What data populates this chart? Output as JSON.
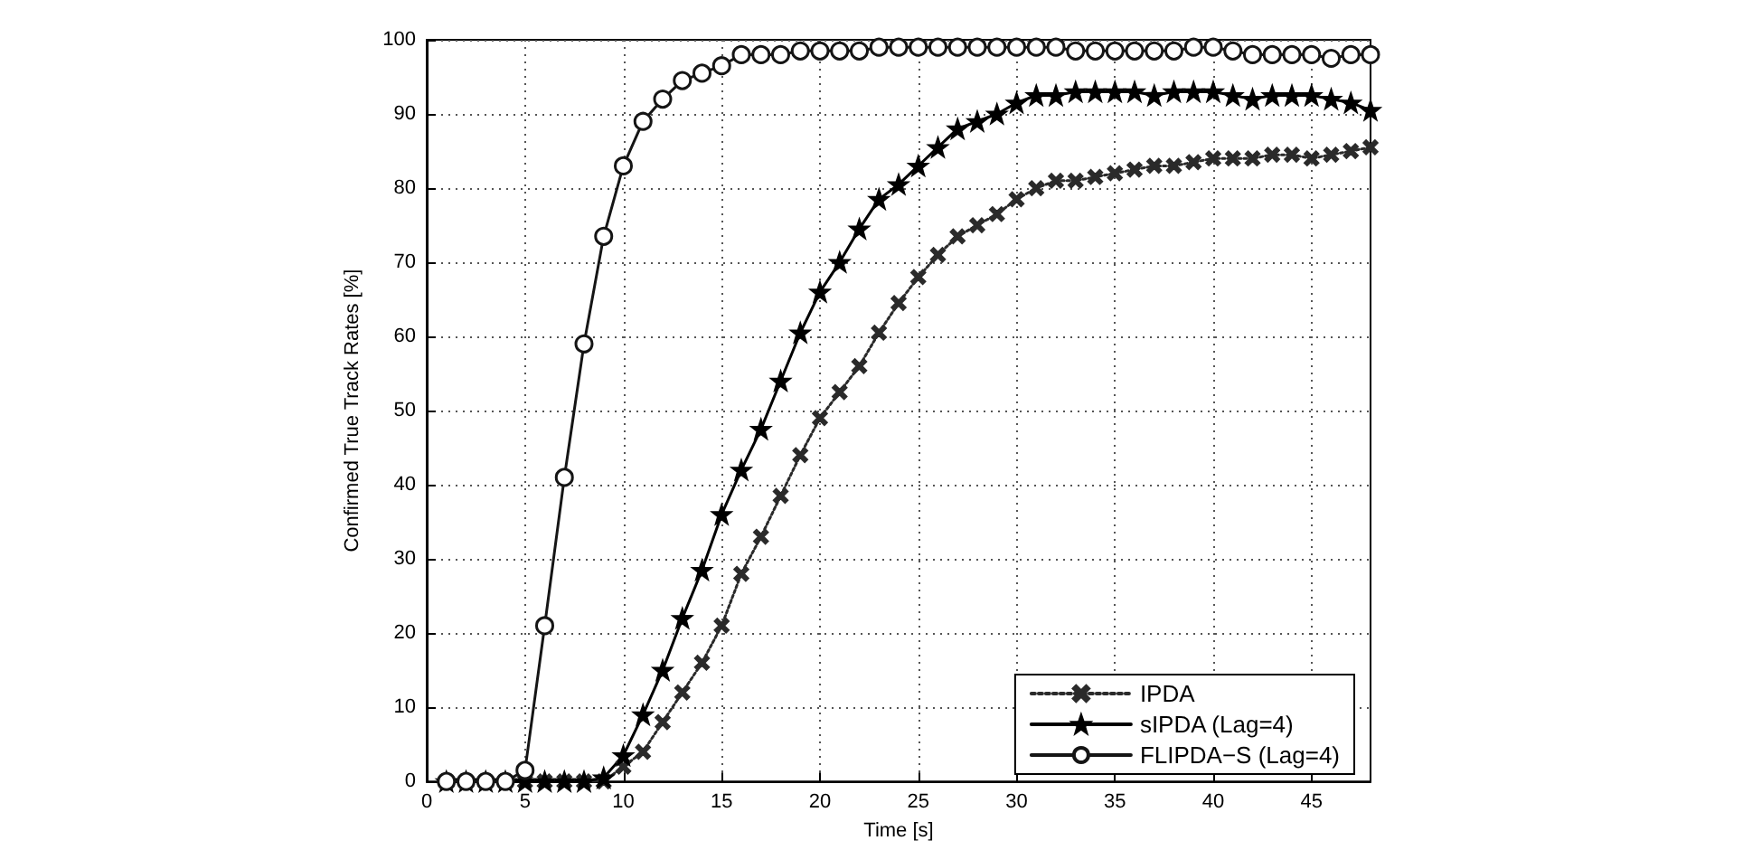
{
  "chart_data": {
    "type": "line",
    "xlabel": "Time [s]",
    "ylabel": "Confirmed True Track Rates [%]",
    "x": [
      1,
      2,
      3,
      4,
      5,
      6,
      7,
      8,
      9,
      10,
      11,
      12,
      13,
      14,
      15,
      16,
      17,
      18,
      19,
      20,
      21,
      22,
      23,
      24,
      25,
      26,
      27,
      28,
      29,
      30,
      31,
      32,
      33,
      34,
      35,
      36,
      37,
      38,
      39,
      40,
      41,
      42,
      43,
      44,
      45,
      46,
      47,
      48
    ],
    "series": [
      {
        "name": "IPDA",
        "color": "#2a2a2a",
        "marker": "cross",
        "line_style": "dotted",
        "values": [
          0,
          0,
          0,
          0,
          0,
          0,
          0,
          0,
          0,
          2,
          4,
          8,
          12,
          16,
          21,
          28,
          33,
          38.5,
          44,
          49,
          52.5,
          56,
          60.5,
          64.5,
          68,
          71,
          73.5,
          75,
          76.5,
          78.5,
          80,
          81,
          81,
          81.5,
          82,
          82.5,
          83,
          83,
          83.5,
          84,
          84,
          84,
          84.5,
          84.5,
          84,
          84.5,
          85,
          85.5
        ]
      },
      {
        "name": "sIPDA (Lag=4)",
        "color": "#000000",
        "marker": "star",
        "line_style": "solid",
        "values": [
          0,
          0,
          0,
          0,
          0,
          0,
          0,
          0,
          0.5,
          3.5,
          9,
          15,
          22,
          28.5,
          36,
          42,
          47.5,
          54,
          60.5,
          66,
          70,
          74.5,
          78.5,
          80.5,
          83,
          85.5,
          88,
          89,
          90,
          91.5,
          92.5,
          92.5,
          93,
          93,
          93,
          93,
          92.5,
          93,
          93,
          93,
          92.5,
          92,
          92.5,
          92.5,
          92.5,
          92,
          91.5,
          90.5
        ]
      },
      {
        "name": "FLIPDA−S (Lag=4)",
        "color": "#151515",
        "marker": "circle",
        "line_style": "solid",
        "values": [
          0,
          0,
          0,
          0,
          1.5,
          21,
          41,
          59,
          73.5,
          83,
          89,
          92,
          94.5,
          95.5,
          96.5,
          98,
          98,
          98,
          98.5,
          98.5,
          98.5,
          98.5,
          99,
          99,
          99,
          99,
          99,
          99,
          99,
          99,
          99,
          99,
          98.5,
          98.5,
          98.5,
          98.5,
          98.5,
          98.5,
          99,
          99,
          98.5,
          98,
          98,
          98,
          98,
          97.5,
          98,
          98
        ]
      }
    ],
    "xlim": [
      0,
      48
    ],
    "xticks": [
      0,
      5,
      10,
      15,
      20,
      25,
      30,
      35,
      40,
      45
    ],
    "ylim": [
      0,
      100
    ],
    "yticks": [
      0,
      10,
      20,
      30,
      40,
      50,
      60,
      70,
      80,
      90,
      100
    ],
    "grid": true,
    "legend": "bottom right"
  }
}
